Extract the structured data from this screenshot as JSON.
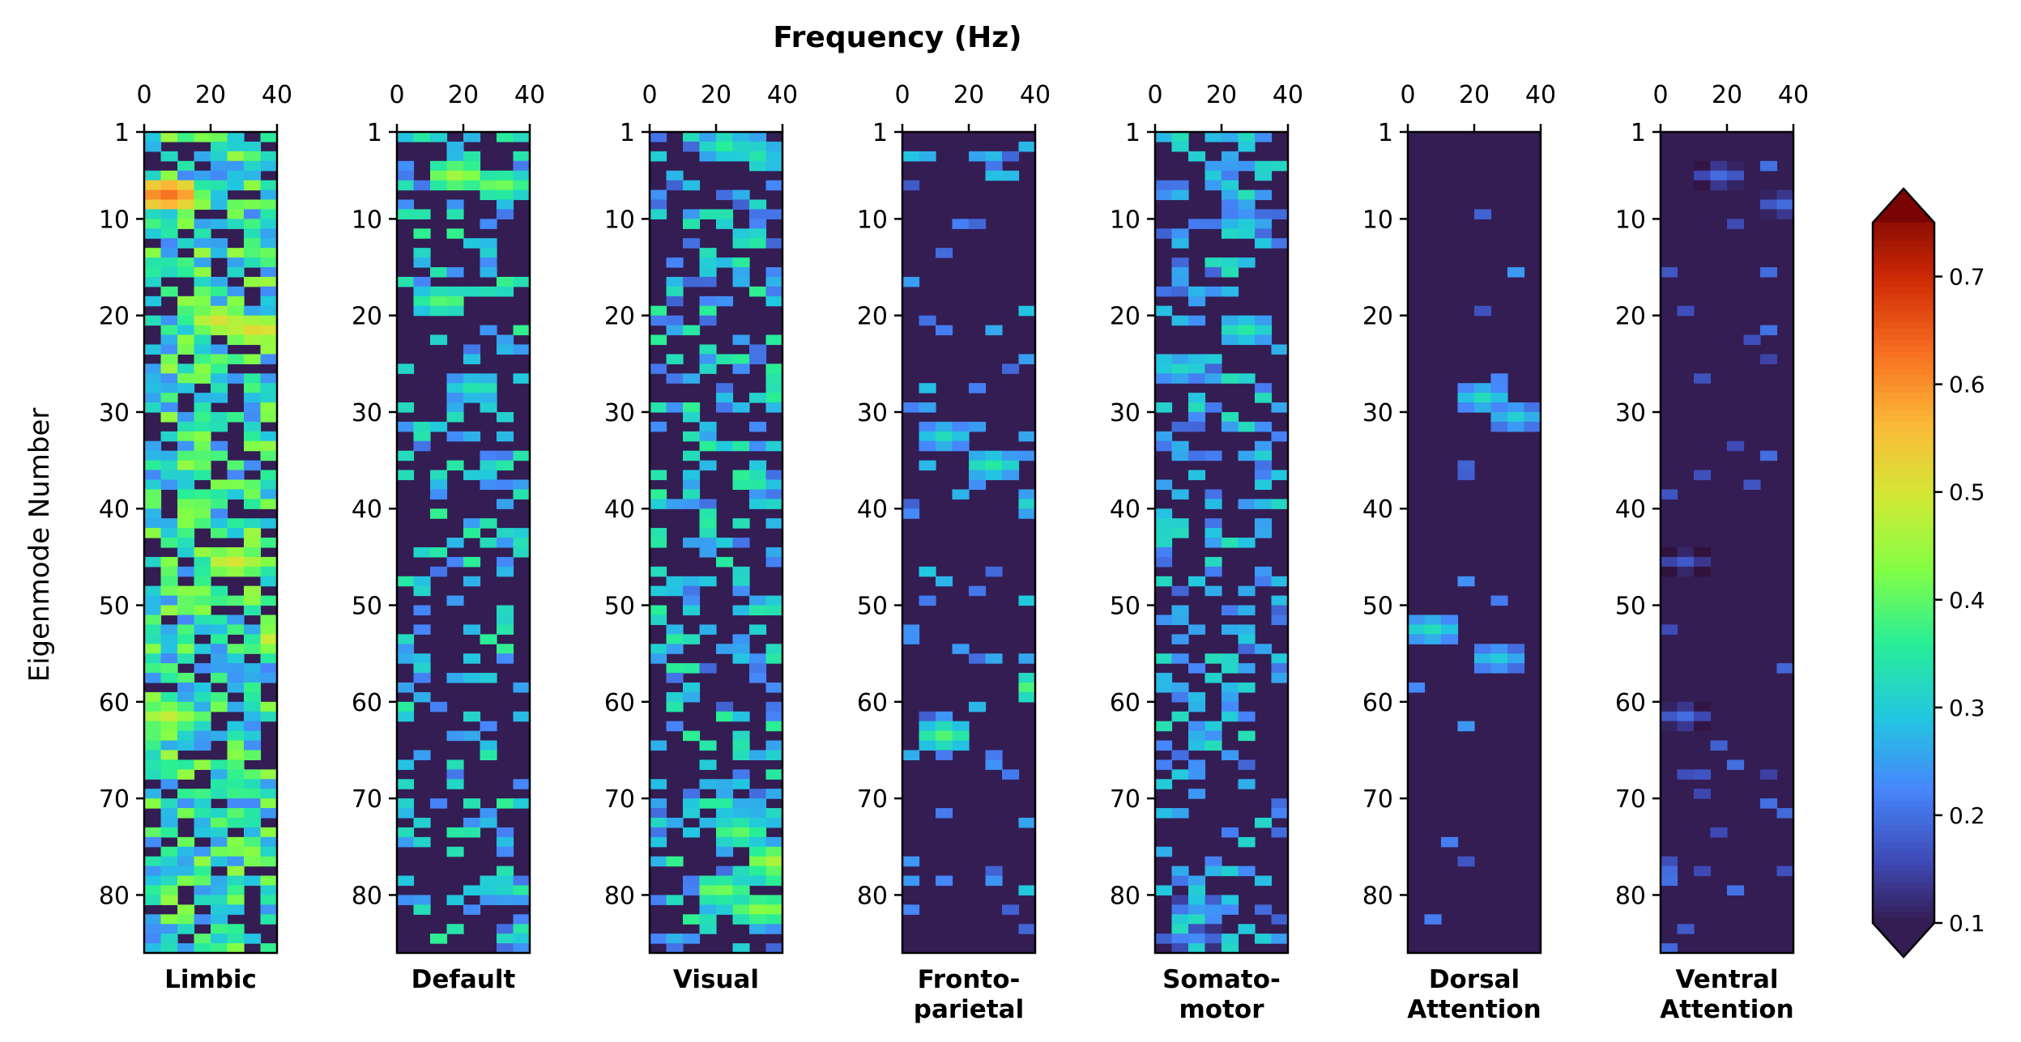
{
  "chart_data": {
    "type": "heatmap",
    "title": "Frequency (Hz)",
    "ylabel": "Eigenmode Number",
    "x_ticks": [
      "0",
      "20",
      "40"
    ],
    "y_ticks": [
      "1",
      "10",
      "20",
      "30",
      "40",
      "50",
      "60",
      "70",
      "80"
    ],
    "xlim": [
      0,
      40
    ],
    "ylim": [
      1,
      86
    ],
    "colorbar": {
      "ticks": [
        "0.1",
        "0.2",
        "0.3",
        "0.4",
        "0.5",
        "0.6",
        "0.7"
      ],
      "min": 0.1,
      "max": 0.75,
      "extend": "both",
      "colormap": "turbo"
    },
    "panels": [
      {
        "name": "Limbic",
        "label_lines": [
          "Limbic"
        ],
        "density": 0.75,
        "base": 0.22,
        "spread": 0.22,
        "highlights": [
          [
            7,
            4,
            0.62
          ],
          [
            20,
            20,
            0.5
          ],
          [
            21,
            32,
            0.52
          ],
          [
            45,
            24,
            0.5
          ],
          [
            53,
            38,
            0.5
          ],
          [
            61,
            4,
            0.48
          ]
        ]
      },
      {
        "name": "Default",
        "label_lines": [
          "Default"
        ],
        "density": 0.28,
        "base": 0.2,
        "spread": 0.16,
        "highlights": [
          [
            5,
            16,
            0.45
          ],
          [
            6,
            28,
            0.42
          ],
          [
            18,
            12,
            0.4
          ],
          [
            27,
            22,
            0.35
          ],
          [
            79,
            28,
            0.32
          ],
          [
            84,
            36,
            0.3
          ]
        ]
      },
      {
        "name": "Visual",
        "label_lines": [
          "Visual"
        ],
        "density": 0.42,
        "base": 0.18,
        "spread": 0.18,
        "highlights": [
          [
            2,
            20,
            0.35
          ],
          [
            73,
            24,
            0.4
          ],
          [
            76,
            36,
            0.46
          ],
          [
            79,
            18,
            0.42
          ],
          [
            81,
            32,
            0.44
          ]
        ]
      },
      {
        "name": "Fronto-parietal",
        "label_lines": [
          "Fronto-",
          "parietal"
        ],
        "density": 0.1,
        "base": 0.17,
        "spread": 0.12,
        "highlights": [
          [
            32,
            10,
            0.32
          ],
          [
            35,
            24,
            0.35
          ],
          [
            39,
            38,
            0.33
          ],
          [
            58,
            38,
            0.4
          ],
          [
            63,
            10,
            0.38
          ]
        ]
      },
      {
        "name": "Somato-motor",
        "label_lines": [
          "Somato-",
          "motor"
        ],
        "density": 0.3,
        "base": 0.18,
        "spread": 0.15,
        "highlights": [
          [
            10,
            24,
            0.3
          ],
          [
            21,
            24,
            0.35
          ],
          [
            25,
            4,
            0.32
          ],
          [
            81,
            12,
            0.26
          ],
          [
            84,
            8,
            0.24
          ]
        ]
      },
      {
        "name": "Dorsal Attention",
        "label_lines": [
          "Dorsal",
          "Attention"
        ],
        "density": 0.02,
        "base": 0.16,
        "spread": 0.08,
        "highlights": [
          [
            28,
            20,
            0.32
          ],
          [
            30,
            30,
            0.3
          ],
          [
            52,
            4,
            0.33
          ],
          [
            55,
            24,
            0.3
          ]
        ]
      },
      {
        "name": "Ventral Attention",
        "label_lines": [
          "Ventral",
          "Attention"
        ],
        "density": 0.04,
        "base": 0.14,
        "spread": 0.06,
        "highlights": [
          [
            5,
            16,
            0.2
          ],
          [
            8,
            34,
            0.2
          ],
          [
            45,
            4,
            0.18
          ],
          [
            61,
            4,
            0.2
          ]
        ]
      }
    ]
  }
}
